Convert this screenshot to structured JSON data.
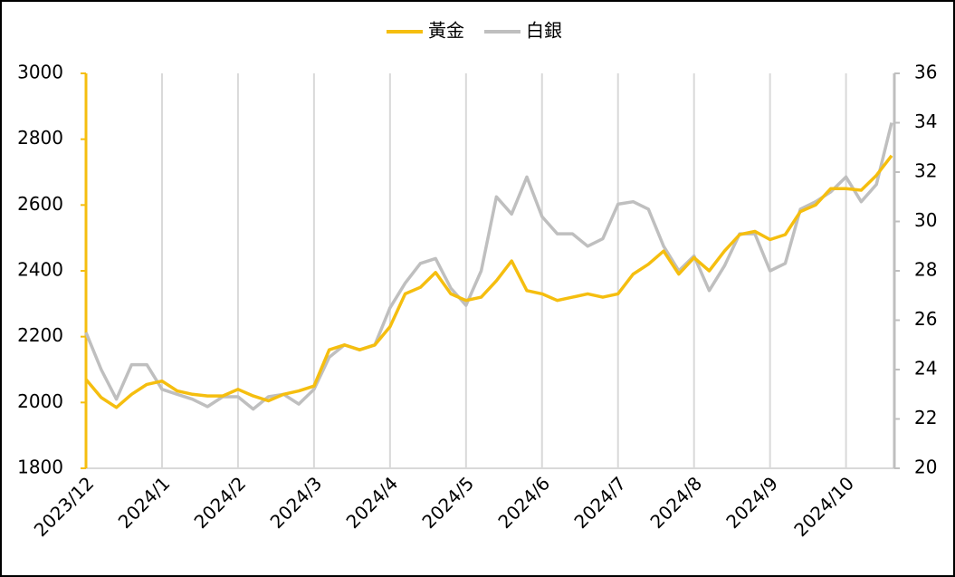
{
  "chart_data": {
    "type": "line",
    "categories": [
      "2023/12",
      null,
      null,
      null,
      null,
      "2024/1",
      null,
      null,
      null,
      null,
      "2024/2",
      null,
      null,
      null,
      null,
      "2024/3",
      null,
      null,
      null,
      null,
      "2024/4",
      null,
      null,
      null,
      null,
      "2024/5",
      null,
      null,
      null,
      null,
      "2024/6",
      null,
      null,
      null,
      null,
      "2024/7",
      null,
      null,
      null,
      null,
      "2024/8",
      null,
      null,
      null,
      null,
      "2024/9",
      null,
      null,
      null,
      null,
      "2024/10",
      null,
      null,
      null
    ],
    "series": [
      {
        "name": "黃金",
        "color": "#F5BE0F",
        "values": [
          2070,
          2015,
          1985,
          2025,
          2055,
          2065,
          2035,
          2025,
          2020,
          2020,
          2040,
          2020,
          2005,
          2025,
          2035,
          2050,
          2160,
          2175,
          2160,
          2175,
          2230,
          2330,
          2350,
          2395,
          2330,
          2310,
          2320,
          2370,
          2430,
          2340,
          2330,
          2310,
          2320,
          2330,
          2320,
          2330,
          2390,
          2420,
          2460,
          2390,
          2440,
          2400,
          2460,
          2510,
          2520,
          2495,
          2510,
          2580,
          2600,
          2650,
          2650,
          2645,
          2690,
          2750
        ]
      },
      {
        "name": "白銀",
        "color": "#BFBFBF",
        "axis": "y2",
        "values": [
          25.5,
          24,
          22.8,
          24.2,
          24.2,
          23.2,
          23.0,
          22.8,
          22.5,
          22.9,
          22.9,
          22.4,
          22.9,
          23.0,
          22.6,
          23.2,
          24.5,
          25.0,
          24.8,
          25.0,
          26.5,
          27.5,
          28.3,
          28.5,
          27.3,
          26.6,
          28.0,
          31.0,
          30.3,
          31.8,
          30.2,
          29.5,
          29.5,
          29.0,
          29.3,
          30.7,
          30.8,
          30.5,
          29.0,
          28.0,
          28.6,
          27.2,
          28.2,
          29.5,
          29.5,
          28.0,
          28.3,
          30.5,
          30.8,
          31.2,
          31.8,
          30.8,
          31.5,
          34.0
        ]
      }
    ],
    "ylim": [
      1800,
      3000
    ],
    "yticks": [
      1800,
      2000,
      2200,
      2400,
      2600,
      2800,
      3000
    ],
    "y2lim": [
      20,
      36
    ],
    "y2ticks": [
      20,
      22,
      24,
      26,
      28,
      30,
      32,
      34,
      36
    ],
    "grid": "x",
    "legend": "top"
  }
}
